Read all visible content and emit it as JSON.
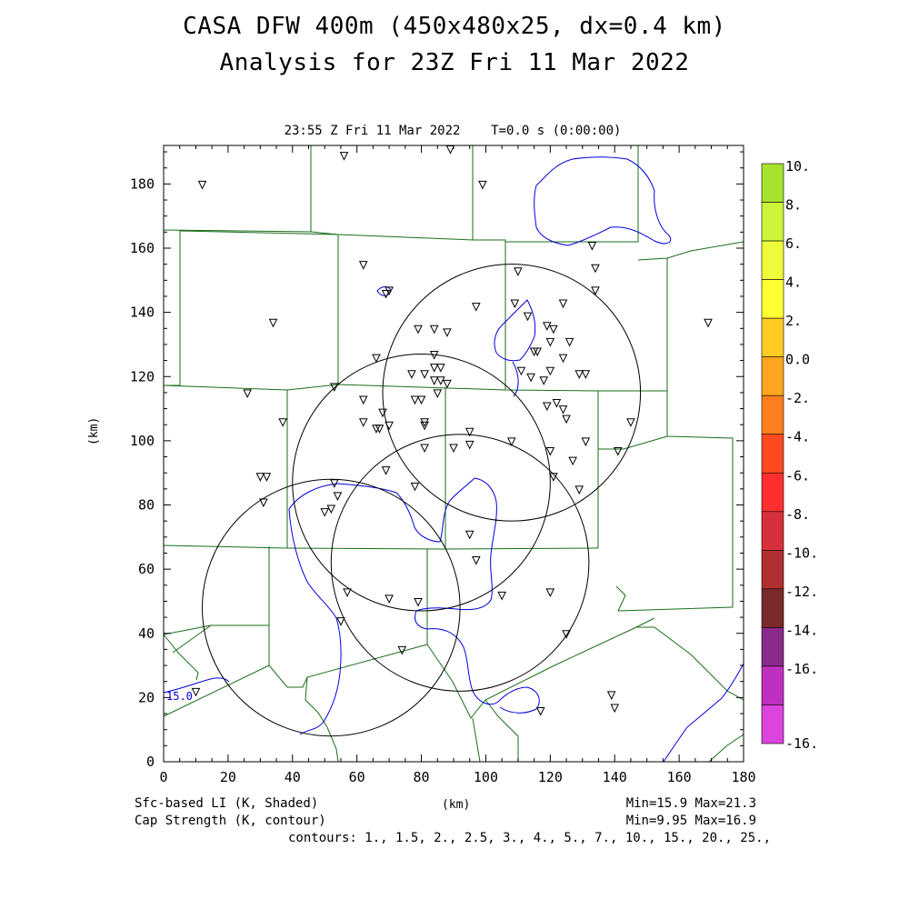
{
  "title_line1": "CASA DFW 400m (450x480x25, dx=0.4 km)",
  "title_line2": "Analysis for 23Z Fri 11 Mar 2022",
  "subtitle": "23:55 Z Fri 11 Mar 2022    T=0.0 s (0:00:00)",
  "axes": {
    "x_label": "(km)",
    "y_label": "(km)",
    "x_range": [
      0,
      180
    ],
    "y_range": [
      0,
      192
    ],
    "x_ticks": [
      0,
      20,
      40,
      60,
      80,
      100,
      120,
      140,
      160,
      180
    ],
    "y_ticks": [
      0,
      20,
      40,
      60,
      80,
      100,
      120,
      140,
      160,
      180
    ]
  },
  "footer": {
    "left1": "Sfc-based LI (K, Shaded)",
    "left2": "Cap Strength (K, contour)",
    "right1": "Min=15.9 Max=21.3",
    "right2": "Min=9.95 Max=16.9",
    "contours": "contours: 1., 1.5, 2., 2.5, 3., 4., 5., 7., 10., 15., 20., 25.,"
  },
  "contour_label": "15.0",
  "colorbar": [
    {
      "label": "10.",
      "color": "#a6e22e"
    },
    {
      "label": "8.",
      "color": "#ccf53a"
    },
    {
      "label": "6.",
      "color": "#eefc3a"
    },
    {
      "label": "4.",
      "color": "#ffff33"
    },
    {
      "label": "2.",
      "color": "#ffcc22"
    },
    {
      "label": "0.0",
      "color": "#ffa51f"
    },
    {
      "label": "-2.",
      "color": "#ff7f1f"
    },
    {
      "label": "-4.",
      "color": "#ff4a1f"
    },
    {
      "label": "-6.",
      "color": "#ff2f2f"
    },
    {
      "label": "-8.",
      "color": "#d8303a"
    },
    {
      "label": "-10.",
      "color": "#b02f30"
    },
    {
      "label": "-12.",
      "color": "#7a2a28"
    },
    {
      "label": "-14.",
      "color": "#8a2a8a"
    },
    {
      "label": "-16.",
      "color": "#c030c0"
    },
    {
      "label": "",
      "color": "#dd44dd"
    }
  ],
  "colors": {
    "county_lines": "#1a6e1a",
    "cap_contour": "#0000dd",
    "radar_rings": "#000000"
  },
  "radar_rings_km": [
    {
      "x": 108,
      "y": 115,
      "r": 40
    },
    {
      "x": 80,
      "y": 87,
      "r": 40
    },
    {
      "x": 92,
      "y": 62,
      "r": 40
    },
    {
      "x": 52,
      "y": 48,
      "r": 40
    }
  ],
  "stations_km": [
    [
      56,
      189
    ],
    [
      89,
      191
    ],
    [
      12,
      180
    ],
    [
      99,
      180
    ],
    [
      62,
      155
    ],
    [
      133,
      161
    ],
    [
      134,
      154
    ],
    [
      110,
      153
    ],
    [
      70,
      147
    ],
    [
      69,
      146
    ],
    [
      109,
      143
    ],
    [
      124,
      143
    ],
    [
      97,
      142
    ],
    [
      134,
      147
    ],
    [
      169,
      137
    ],
    [
      34,
      137
    ],
    [
      113,
      139
    ],
    [
      119,
      136
    ],
    [
      121,
      135
    ],
    [
      79,
      135
    ],
    [
      84,
      135
    ],
    [
      88,
      134
    ],
    [
      120,
      131
    ],
    [
      126,
      131
    ],
    [
      84,
      127
    ],
    [
      66,
      126
    ],
    [
      116,
      128
    ],
    [
      115,
      128
    ],
    [
      124,
      126
    ],
    [
      77,
      121
    ],
    [
      81,
      121
    ],
    [
      84,
      123
    ],
    [
      86,
      123
    ],
    [
      111,
      122
    ],
    [
      120,
      122
    ],
    [
      114,
      120
    ],
    [
      118,
      119
    ],
    [
      129,
      121
    ],
    [
      131,
      121
    ],
    [
      84,
      119
    ],
    [
      86,
      119
    ],
    [
      88,
      118
    ],
    [
      53,
      117
    ],
    [
      85,
      115
    ],
    [
      26,
      115
    ],
    [
      78,
      113
    ],
    [
      80,
      113
    ],
    [
      62,
      113
    ],
    [
      119,
      111
    ],
    [
      122,
      112
    ],
    [
      124,
      110
    ],
    [
      68,
      109
    ],
    [
      125,
      107
    ],
    [
      62,
      106
    ],
    [
      70,
      105
    ],
    [
      66,
      104
    ],
    [
      67,
      104
    ],
    [
      81,
      105
    ],
    [
      81,
      106
    ],
    [
      95,
      103
    ],
    [
      37,
      106
    ],
    [
      145,
      106
    ],
    [
      108,
      100
    ],
    [
      131,
      100
    ],
    [
      95,
      99
    ],
    [
      90,
      98
    ],
    [
      81,
      98
    ],
    [
      120,
      97
    ],
    [
      141,
      97
    ],
    [
      127,
      94
    ],
    [
      69,
      91
    ],
    [
      30,
      89
    ],
    [
      32,
      89
    ],
    [
      121,
      89
    ],
    [
      129,
      85
    ],
    [
      78,
      86
    ],
    [
      53,
      87
    ],
    [
      54,
      83
    ],
    [
      52,
      79
    ],
    [
      50,
      78
    ],
    [
      31,
      81
    ],
    [
      95,
      71
    ],
    [
      97,
      63
    ],
    [
      57,
      53
    ],
    [
      70,
      51
    ],
    [
      79,
      50
    ],
    [
      105,
      52
    ],
    [
      120,
      53
    ],
    [
      55,
      44
    ],
    [
      125,
      40
    ],
    [
      74,
      35
    ],
    [
      10,
      22
    ],
    [
      139,
      21
    ],
    [
      140,
      17
    ],
    [
      117,
      16
    ]
  ]
}
